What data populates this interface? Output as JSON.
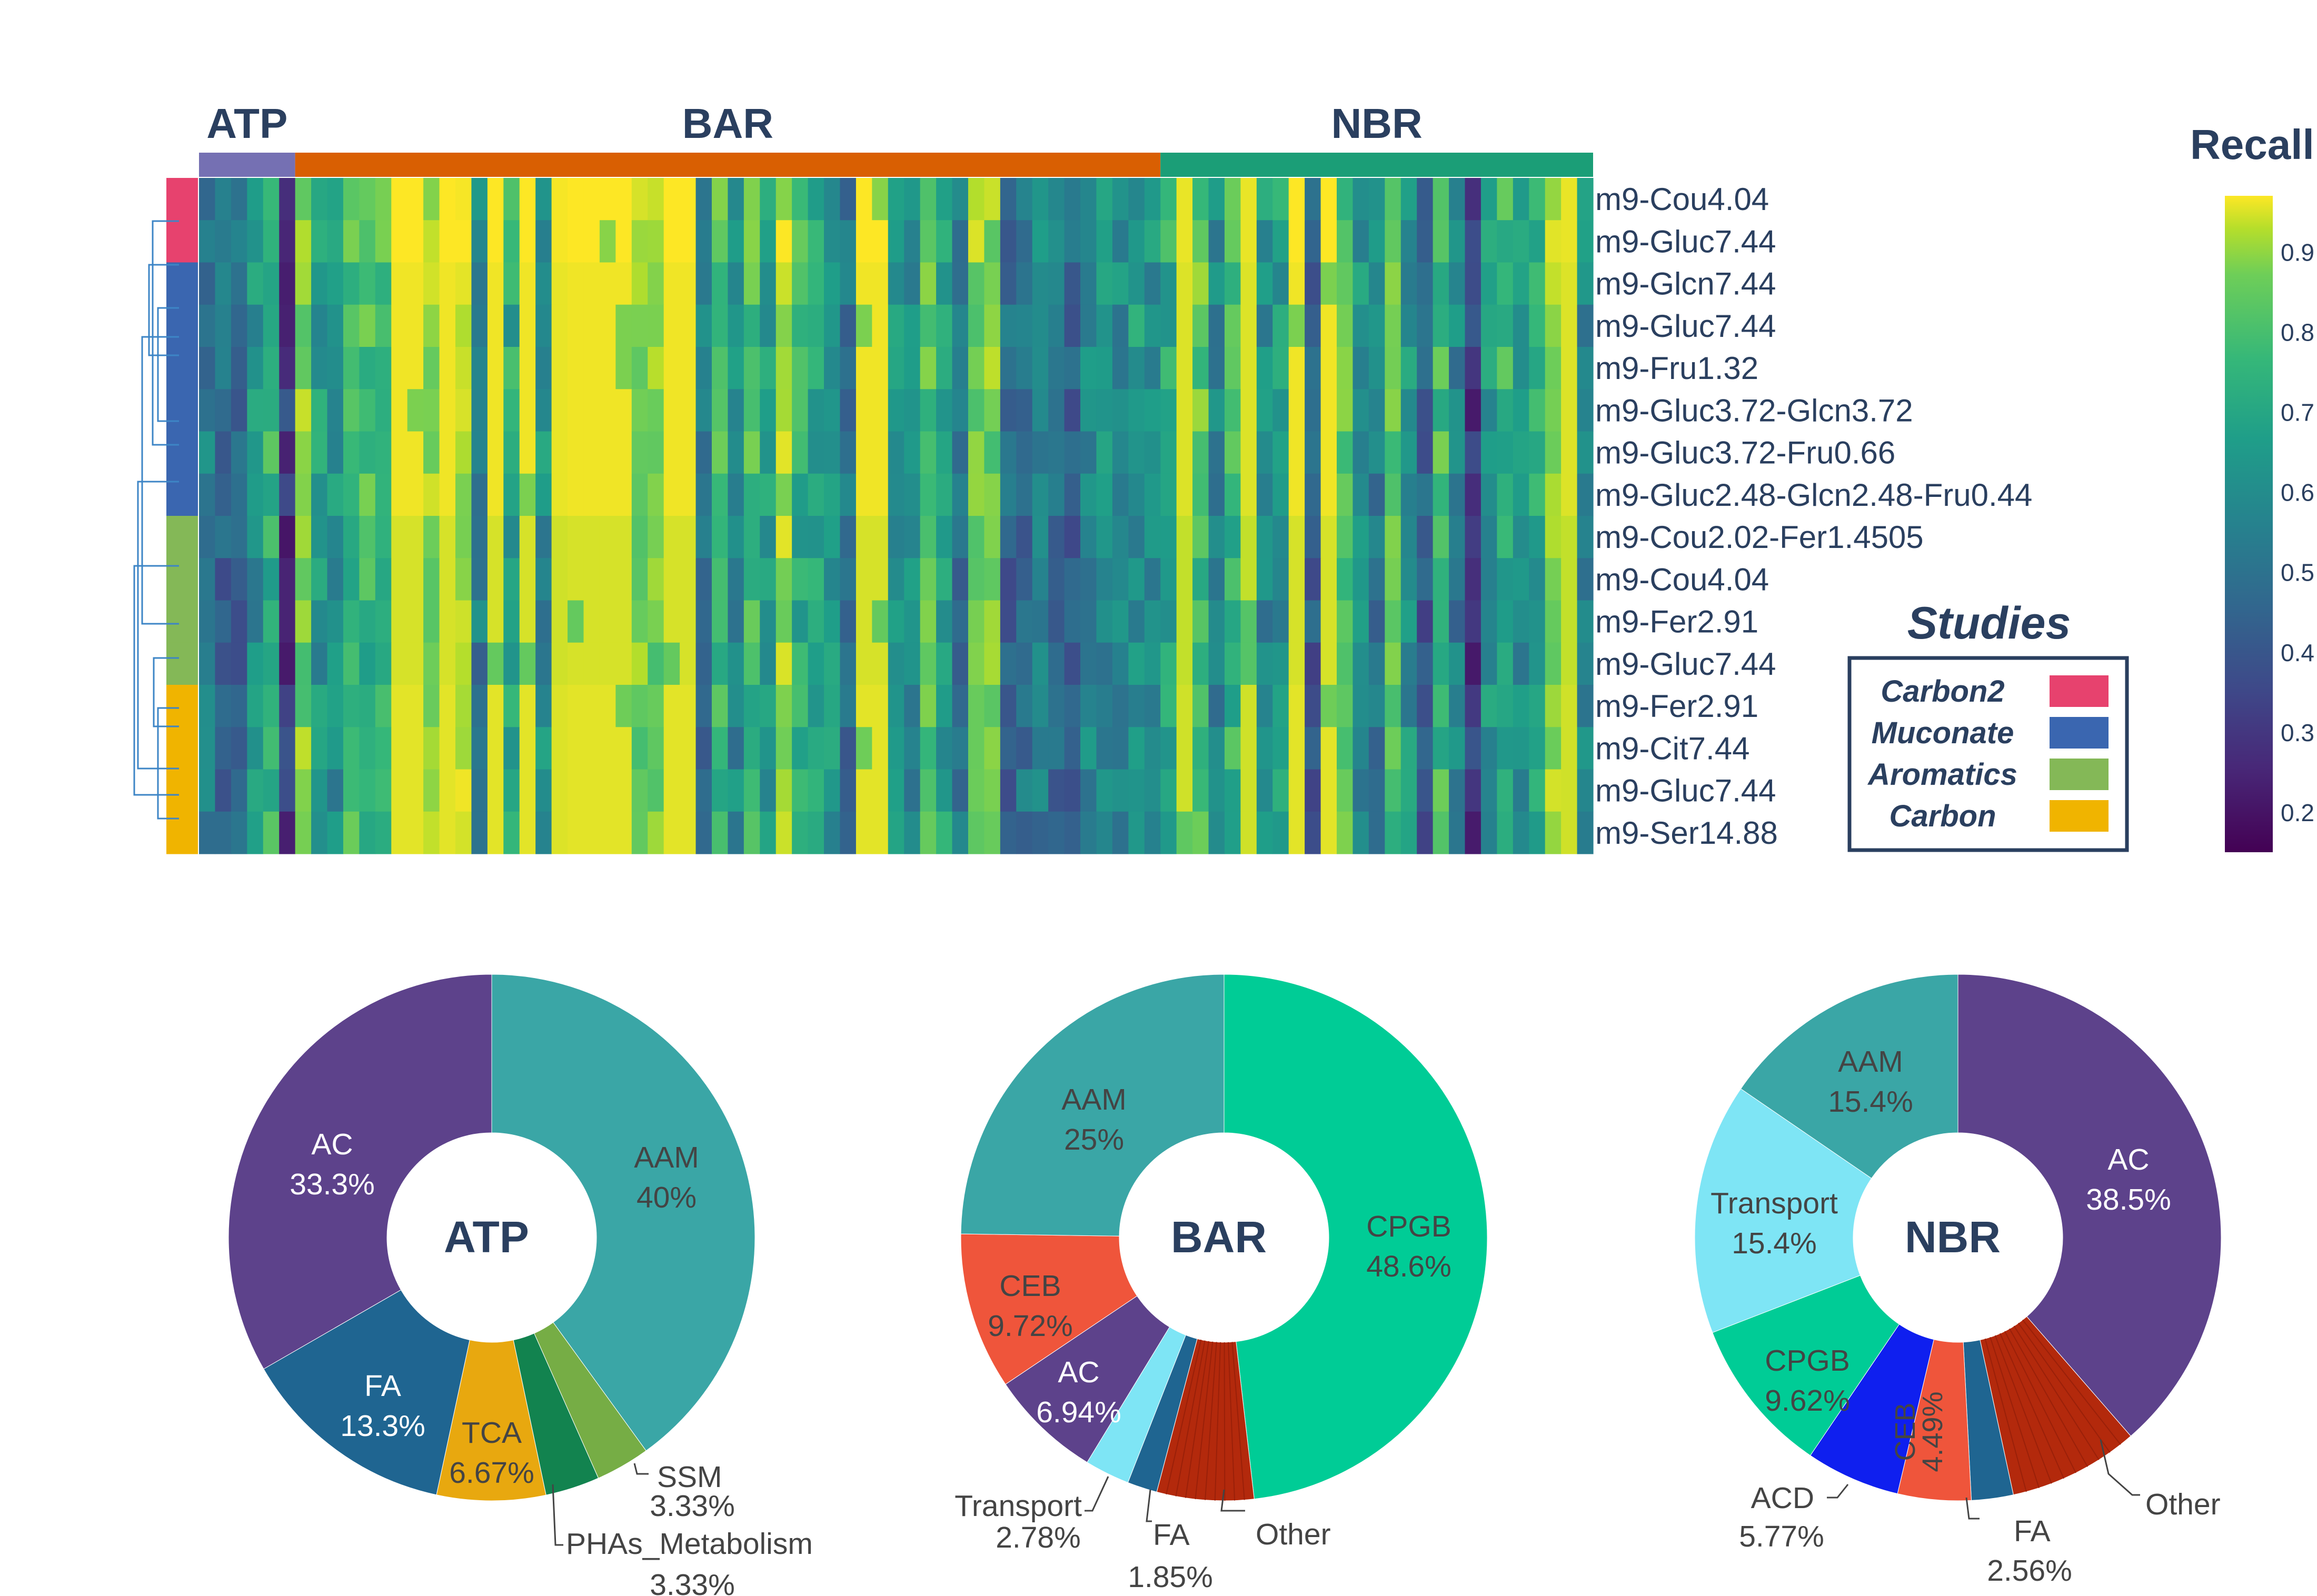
{
  "heatmap": {
    "column_groups": [
      {
        "name": "ATP",
        "count": 6,
        "color": "#7570b3"
      },
      {
        "name": "BAR",
        "count": 54,
        "color": "#d95f02"
      },
      {
        "name": "NBR",
        "count": 27,
        "color": "#1b9e77"
      }
    ],
    "row_labels": [
      "m9-Cou4.04",
      "m9-Gluc7.44",
      "m9-Glcn7.44",
      "m9-Gluc7.44",
      "m9-Fru1.32",
      "m9-Gluc3.72-Glcn3.72",
      "m9-Gluc3.72-Fru0.66",
      "m9-Gluc2.48-Glcn2.48-Fru0.44",
      "m9-Cou2.02-Fer1.4505",
      "m9-Cou4.04",
      "m9-Fer2.91",
      "m9-Gluc7.44",
      "m9-Fer2.91",
      "m9-Cit7.44",
      "m9-Gluc7.44",
      "m9-Ser14.88"
    ],
    "row_studies": [
      "Carbon2",
      "Carbon2",
      "Muconate",
      "Muconate",
      "Muconate",
      "Muconate",
      "Muconate",
      "Muconate",
      "Aromatics",
      "Aromatics",
      "Aromatics",
      "Aromatics",
      "Carbon",
      "Carbon",
      "Carbon",
      "Carbon"
    ],
    "colorbar": {
      "title": "Recall",
      "range": [
        0.15,
        0.97
      ],
      "ticks": [
        "0.9",
        "0.8",
        "0.7",
        "0.6",
        "0.5",
        "0.4",
        "0.3",
        "0.2"
      ],
      "colorscale": "viridis"
    },
    "approx_column_profile": [
      0.42,
      0.36,
      0.35,
      0.52,
      0.68,
      0.18,
      0.82,
      0.55,
      0.5,
      0.72,
      0.7,
      0.68,
      0.98,
      0.98,
      0.85,
      0.98,
      0.9,
      0.45,
      0.98,
      0.6,
      0.98,
      0.5,
      0.97,
      0.98,
      0.98,
      0.98,
      0.98,
      0.82,
      0.84,
      0.98,
      0.98,
      0.4,
      0.7,
      0.48,
      0.7,
      0.55,
      0.9,
      0.65,
      0.6,
      0.55,
      0.38,
      0.98,
      0.98,
      0.55,
      0.5,
      0.74,
      0.58,
      0.4,
      0.82,
      0.8,
      0.34,
      0.4,
      0.44,
      0.38,
      0.3,
      0.48,
      0.5,
      0.48,
      0.55,
      0.48,
      0.6,
      0.95,
      0.75,
      0.45,
      0.68,
      0.95,
      0.5,
      0.55,
      0.98,
      0.3,
      0.98,
      0.72,
      0.5,
      0.42,
      0.75,
      0.52,
      0.3,
      0.7,
      0.45,
      0.18,
      0.55,
      0.65,
      0.5,
      0.6,
      0.88,
      0.95,
      0.45
    ]
  },
  "studies_legend": {
    "title": "Studies",
    "items": [
      {
        "label": "Carbon2",
        "color": "#e7426e"
      },
      {
        "label": "Muconate",
        "color": "#3a66b0"
      },
      {
        "label": "Aromatics",
        "color": "#84b857"
      },
      {
        "label": "Carbon",
        "color": "#f0b400"
      }
    ]
  },
  "chart_data": [
    {
      "type": "pie",
      "center_label": "ATP",
      "hole": true,
      "slices": [
        {
          "label": "AAM",
          "value": 40,
          "text": "40%",
          "color": "#3aa6a6",
          "label_color": "#444444"
        },
        {
          "label": "SSM",
          "value": 3.33,
          "text": "3.33%",
          "color": "#76ad45",
          "label_color": "#444444"
        },
        {
          "label": "PHAs_Metabolism",
          "value": 3.33,
          "text": "3.33%",
          "color": "#12834f",
          "label_color": "#444444"
        },
        {
          "label": "TCA",
          "value": 6.67,
          "text": "6.67%",
          "color": "#e8a80f",
          "label_color": "#444444"
        },
        {
          "label": "FA",
          "value": 13.3,
          "text": "13.3%",
          "color": "#1f6591",
          "label_color": "#ffffff"
        },
        {
          "label": "AC",
          "value": 33.3,
          "text": "33.3%",
          "color": "#5d428b",
          "label_color": "#ffffff"
        }
      ]
    },
    {
      "type": "pie",
      "center_label": "BAR",
      "hole": true,
      "slices": [
        {
          "label": "CPGB",
          "value": 48.6,
          "text": "48.6%",
          "color": "#00cc96",
          "label_color": "#444444"
        },
        {
          "label": "Other",
          "value": 6.0,
          "text": "",
          "color": "#b3290c",
          "label_color": "#444444"
        },
        {
          "label": "FA",
          "value": 1.85,
          "text": "1.85%",
          "color": "#1f6591",
          "label_color": "#444444"
        },
        {
          "label": "Transport",
          "value": 2.78,
          "text": "2.78%",
          "color": "#7ee5f5",
          "label_color": "#444444"
        },
        {
          "label": "AC",
          "value": 6.94,
          "text": "6.94%",
          "color": "#5d428b",
          "label_color": "#ffffff"
        },
        {
          "label": "CEB",
          "value": 9.72,
          "text": "9.72%",
          "color": "#ef553b",
          "label_color": "#444444"
        },
        {
          "label": "AAM",
          "value": 25,
          "text": "25%",
          "color": "#3aa6a6",
          "label_color": "#444444"
        }
      ]
    },
    {
      "type": "pie",
      "center_label": "NBR",
      "hole": true,
      "slices": [
        {
          "label": "AC",
          "value": 38.5,
          "text": "38.5%",
          "color": "#5d428b",
          "label_color": "#ffffff"
        },
        {
          "label": "Other",
          "value": 8.0,
          "text": "",
          "color": "#b3290c",
          "label_color": "#444444"
        },
        {
          "label": "FA",
          "value": 2.56,
          "text": "2.56%",
          "color": "#1f6591",
          "label_color": "#444444"
        },
        {
          "label": "CEB",
          "value": 4.49,
          "text": "4.49%",
          "color": "#ef553b",
          "label_color": "#444444"
        },
        {
          "label": "ACD",
          "value": 5.77,
          "text": "5.77%",
          "color": "#0f1fef",
          "label_color": "#444444"
        },
        {
          "label": "CPGB",
          "value": 9.62,
          "text": "9.62%",
          "color": "#00cc96",
          "label_color": "#444444"
        },
        {
          "label": "Transport",
          "value": 15.4,
          "text": "15.4%",
          "color": "#7ee5f5",
          "label_color": "#444444"
        },
        {
          "label": "AAM",
          "value": 15.4,
          "text": "15.4%",
          "color": "#3aa6a6",
          "label_color": "#444444"
        }
      ]
    }
  ]
}
